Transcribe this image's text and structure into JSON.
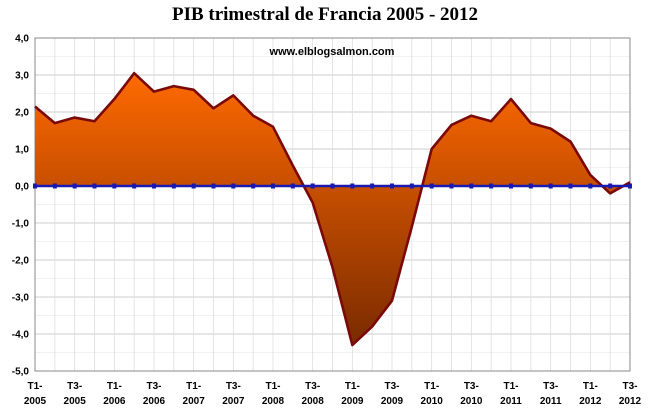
{
  "chart_data": {
    "type": "area",
    "title": "PIB trimestral de Francia 2005 - 2012",
    "annotation": "www.elblogsalmon.com",
    "xlabel": "",
    "ylabel": "",
    "ylim": [
      -5.0,
      4.0
    ],
    "yticks": [
      "4,0",
      "3,0",
      "2,0",
      "1,0",
      "0,0",
      "-1,0",
      "-2,0",
      "-3,0",
      "-4,0",
      "-5,0"
    ],
    "ytick_values": [
      4,
      3,
      2,
      1,
      0,
      -1,
      -2,
      -3,
      -4,
      -5
    ],
    "x_tick_labels": [
      {
        "index": 0,
        "line1": "T1-",
        "line2": "2005"
      },
      {
        "index": 2,
        "line1": "T3-",
        "line2": "2005"
      },
      {
        "index": 4,
        "line1": "T1-",
        "line2": "2006"
      },
      {
        "index": 6,
        "line1": "T3-",
        "line2": "2006"
      },
      {
        "index": 8,
        "line1": "T1-",
        "line2": "2007"
      },
      {
        "index": 10,
        "line1": "T3-",
        "line2": "2007"
      },
      {
        "index": 12,
        "line1": "T1-",
        "line2": "2008"
      },
      {
        "index": 14,
        "line1": "T3-",
        "line2": "2008"
      },
      {
        "index": 16,
        "line1": "T1-",
        "line2": "2009"
      },
      {
        "index": 18,
        "line1": "T3-",
        "line2": "2009"
      },
      {
        "index": 20,
        "line1": "T1-",
        "line2": "2010"
      },
      {
        "index": 22,
        "line1": "T3-",
        "line2": "2010"
      },
      {
        "index": 24,
        "line1": "T1-",
        "line2": "2011"
      },
      {
        "index": 26,
        "line1": "T3-",
        "line2": "2011"
      },
      {
        "index": 28,
        "line1": "T1-",
        "line2": "2012"
      },
      {
        "index": 30,
        "line1": "T3-",
        "line2": "2012"
      }
    ],
    "series": [
      {
        "values": [
          2.15,
          1.7,
          1.85,
          1.75,
          2.35,
          3.05,
          2.55,
          2.7,
          2.6,
          2.1,
          2.45,
          1.9,
          1.6,
          0.55,
          -0.45,
          -2.2,
          -4.3,
          -3.8,
          -3.1,
          -1.1,
          1.0,
          1.65,
          1.9,
          1.75,
          2.35,
          1.7,
          1.55,
          1.2,
          0.3,
          -0.2,
          0.1
        ]
      }
    ],
    "grid": true,
    "legend": "none",
    "colors": {
      "area_top": "#ff6a00",
      "area_bottom": "#7a2a00",
      "line": "#7a0a0a",
      "zero_line": "#1a1ab0",
      "grid": "#cccccc"
    }
  }
}
